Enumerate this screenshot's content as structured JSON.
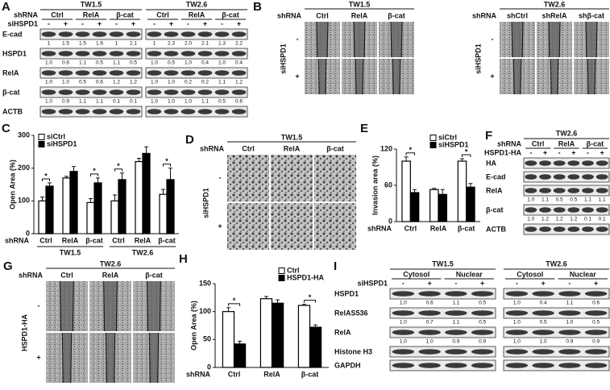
{
  "chart_data": [
    {
      "type": "bar",
      "label": "C",
      "ylabel": "Open Area (%)",
      "xlabel": "shRNA",
      "groups": [
        {
          "name": "TW1.5",
          "categories": [
            "Ctrl",
            "RelA",
            "β-cat"
          ]
        },
        {
          "name": "TW2.6",
          "categories": [
            "Ctrl",
            "RelA",
            "β-cat"
          ]
        }
      ],
      "series": [
        {
          "name": "siCtrl",
          "color": "#ffffff",
          "values": [
            100,
            170,
            95,
            100,
            220,
            120
          ],
          "errors": [
            12,
            5,
            12,
            18,
            10,
            15
          ]
        },
        {
          "name": "siHSPD1",
          "color": "#000000",
          "values": [
            145,
            190,
            155,
            165,
            245,
            165
          ],
          "errors": [
            10,
            15,
            15,
            20,
            20,
            35
          ]
        }
      ],
      "ylim": [
        0,
        300
      ],
      "yticks": [
        0,
        100,
        200,
        300
      ],
      "legend": "upper left",
      "significant": [
        true,
        false,
        true,
        true,
        false,
        true
      ],
      "significance_label": "*"
    },
    {
      "type": "bar",
      "label": "E",
      "ylabel": "Invasion area (%)",
      "xlabel": "shRNA",
      "categories": [
        "Ctrl",
        "RelA",
        "β-cat"
      ],
      "series": [
        {
          "name": "siCtrl",
          "color": "#ffffff",
          "values": [
            100,
            53,
            100
          ],
          "errors": [
            7,
            2,
            4
          ]
        },
        {
          "name": "siHSPD1",
          "color": "#000000",
          "values": [
            48,
            45,
            57
          ],
          "errors": [
            5,
            8,
            6
          ]
        }
      ],
      "ylim": [
        0,
        120
      ],
      "yticks": [
        0,
        60,
        120
      ],
      "legend": "upper right",
      "significant": [
        true,
        false,
        true
      ],
      "significance_label": "*"
    },
    {
      "type": "bar",
      "label": "H",
      "ylabel": "Open Area (%)",
      "xlabel": "shRNA",
      "categories": [
        "Ctrl",
        "RelA",
        "β-cat"
      ],
      "series": [
        {
          "name": "Ctrl",
          "color": "#ffffff",
          "values": [
            100,
            123,
            111
          ],
          "errors": [
            7,
            4,
            2
          ]
        },
        {
          "name": "HSPD1-HA",
          "color": "#000000",
          "values": [
            42,
            115,
            72
          ],
          "errors": [
            5,
            6,
            4
          ]
        }
      ],
      "ylim": [
        0,
        150
      ],
      "yticks": [
        0,
        50,
        100,
        150
      ],
      "legend": "upper right",
      "significant": [
        true,
        false,
        true
      ],
      "significance_label": "*"
    }
  ],
  "panel_a": {
    "label": "A",
    "shrna_label": "shRNA",
    "treatment": "siHSPD1",
    "signs": [
      "-",
      "+"
    ],
    "groups": [
      {
        "title": "TW1.5",
        "lanes": [
          "Ctrl",
          "RelA",
          "β-cat"
        ]
      },
      {
        "title": "TW2.6",
        "lanes": [
          "Ctrl",
          "RelA",
          "β-cat"
        ]
      }
    ],
    "rows": [
      {
        "name": "E-cad",
        "quant": [
          [
            "1",
            "1.5",
            "1.5",
            "1.6",
            "1",
            "2.1"
          ],
          [
            "1",
            "2.3",
            "2.0",
            "2.1",
            "1.3",
            "2.2"
          ]
        ]
      },
      {
        "name": "HSPD1",
        "quant": [
          [
            "1.0",
            "0.6",
            "1.1",
            "0.5",
            "1.1",
            "0.5"
          ],
          [
            "1.0",
            "0.5",
            "1.0",
            "0.4",
            "1.0",
            "0.4"
          ]
        ]
      },
      {
        "name": "RelA",
        "quant": [
          [
            "1.0",
            "1.0",
            "0.5",
            "0.6",
            "1.2",
            "1.2"
          ],
          [
            "1.0",
            "1.0",
            "0.2",
            "0.2",
            "1.1",
            "1.2"
          ]
        ]
      },
      {
        "name": "β-cat",
        "quant": [
          [
            "1.0",
            "0.9",
            "1.1",
            "1.1",
            "0.1",
            "0.1"
          ],
          [
            "1.0",
            "1.0",
            "1.0",
            "1.1",
            "0.5",
            "0.6"
          ]
        ]
      },
      {
        "name": "ACTB"
      }
    ]
  },
  "panel_b": {
    "label": "B",
    "shrna_label": "shRNA",
    "row_label": "siHSPD1",
    "rows": [
      "-",
      "+"
    ],
    "groups": [
      {
        "title": "TW1.5",
        "columns": [
          "Ctrl",
          "RelA",
          "β-cat"
        ]
      },
      {
        "title": "TW2.6",
        "columns": [
          "shCtrl",
          "shRelA",
          "shβ-cat"
        ]
      }
    ]
  },
  "panel_d": {
    "label": "D",
    "shrna_label": "shRNA",
    "row_label": "siHSPD1",
    "rows": [
      "-",
      "+"
    ],
    "groups": [
      {
        "title": "TW1.5",
        "columns": [
          "Ctrl",
          "RelA",
          "β-cat"
        ]
      }
    ]
  },
  "panel_f": {
    "label": "F",
    "shrna_label": "shRNA",
    "treatment": "HSPD1-HA",
    "signs": [
      "-",
      "+"
    ],
    "groups": [
      {
        "title": "TW2.6",
        "lanes": [
          "Ctrl",
          "RelA",
          "β-cat"
        ]
      }
    ],
    "rows": [
      {
        "name": "HA"
      },
      {
        "name": "E-cad"
      },
      {
        "name": "RelA",
        "quant": [
          [
            "1.0",
            "1.1",
            "0.5",
            "0.5",
            "1.1",
            "1.1"
          ]
        ]
      },
      {
        "name": "β-cat",
        "quant": [
          [
            "1.0",
            "1.2",
            "1.2",
            "1.2",
            "0.1",
            "0.1"
          ]
        ]
      },
      {
        "name": "ACTB"
      }
    ]
  },
  "panel_g": {
    "label": "G",
    "shrna_label": "shRNA",
    "row_label": "HSPD1-HA",
    "rows": [
      "-",
      "+"
    ],
    "groups": [
      {
        "title": "TW2.6",
        "columns": [
          "Ctrl",
          "RelA",
          "β-cat"
        ]
      }
    ]
  },
  "panel_i": {
    "label": "I",
    "treatment": "siHSPD1",
    "signs": [
      "-",
      "+"
    ],
    "groups": [
      {
        "title": "TW1.5",
        "lanes": [
          "Cytosol",
          "Nuclear"
        ]
      },
      {
        "title": "TW2.6",
        "lanes": [
          "Cytosol",
          "Nuclear"
        ]
      }
    ],
    "rows": [
      {
        "name": "HSPD1",
        "quant": [
          [
            "1.0",
            "0.6",
            "1.1",
            "0.5"
          ],
          [
            "1.0",
            "0.4",
            "1.1",
            "0.6"
          ]
        ]
      },
      {
        "name": "RelAS536",
        "quant": [
          [
            "1.0",
            "0.7",
            "1.1",
            "0.5"
          ],
          [
            "1.0",
            "0.5",
            "1.0",
            "0.5"
          ]
        ]
      },
      {
        "name": "RelA",
        "quant": [
          [
            "1.0",
            "1.0",
            "0.9",
            "0.9"
          ],
          [
            "1.0",
            "1.0",
            "0.9",
            "0.9"
          ]
        ]
      },
      {
        "name": "Histone H3"
      },
      {
        "name": "GAPDH"
      }
    ]
  }
}
